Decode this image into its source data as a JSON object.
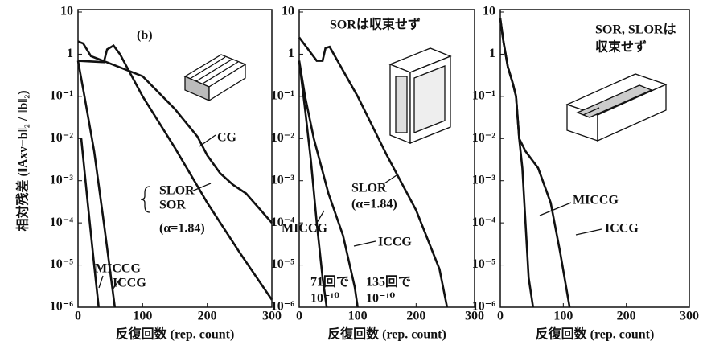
{
  "chart_data": [
    {
      "type": "line",
      "yscale": "log",
      "color": "#111111",
      "ylabel": "相対残差 (‖Axν−b‖₂ / ‖b‖₂)",
      "xlabel": "反復回数 (rep. count)",
      "xlim": [
        0,
        300
      ],
      "xticks": [
        0,
        100,
        200,
        300
      ],
      "ylim": [
        1e-06,
        10
      ],
      "yticks": [
        10,
        1,
        {
          "value": 0.1,
          "label": "10⁻¹"
        },
        {
          "value": 0.01,
          "label": "10⁻²"
        },
        {
          "value": 0.001,
          "label": "10⁻³"
        },
        {
          "value": 0.0001,
          "label": "10⁻⁴"
        },
        {
          "value": 1e-05,
          "label": "10⁻⁵"
        },
        {
          "value": 1e-06,
          "label": "10⁻⁶"
        }
      ],
      "annotations": [
        "(b)",
        "SOR",
        "(α=1.84)"
      ],
      "series": [
        {
          "name": "CG",
          "x": [
            0,
            8,
            20,
            50,
            100,
            150,
            185,
            200,
            220,
            240,
            260,
            300
          ],
          "values": [
            2,
            1.8,
            0.9,
            0.6,
            0.3,
            0.05,
            0.011,
            0.004,
            0.0015,
            0.0008,
            0.0005,
            0.0001
          ]
        },
        {
          "name": "SLOR",
          "x": [
            0,
            40,
            45,
            55,
            65,
            100,
            150,
            200,
            250,
            300
          ],
          "values": [
            0.7,
            0.65,
            1.3,
            1.6,
            1.0,
            0.1,
            0.006,
            0.0003,
            2e-05,
            1.5e-06
          ]
        },
        {
          "name": "MICCG",
          "x": [
            5,
            15,
            25,
            32
          ],
          "values": [
            0.01,
            0.0003,
            1e-05,
            1e-06
          ]
        },
        {
          "name": "ICCG",
          "x": [
            0,
            10,
            25,
            40,
            57
          ],
          "values": [
            0.7,
            0.1,
            0.005,
            0.0001,
            1e-06
          ]
        }
      ]
    },
    {
      "type": "line",
      "yscale": "log",
      "color": "#111111",
      "xlabel": "反復回数 (rep. count)",
      "xlim": [
        0,
        300
      ],
      "xticks": [
        0,
        100,
        200,
        300
      ],
      "ylim": [
        1e-06,
        10
      ],
      "yticks": [
        10,
        1,
        {
          "value": 0.1,
          "label": "10⁻¹"
        },
        {
          "value": 0.01,
          "label": "10⁻²"
        },
        {
          "value": 0.001,
          "label": "10⁻³"
        },
        {
          "value": 0.0001,
          "label": "10⁻⁴"
        },
        {
          "value": 1e-05,
          "label": "10⁻⁵"
        },
        {
          "value": 1e-06,
          "label": "10⁻⁶"
        }
      ],
      "annotations": [
        "SORは収束せず",
        "(α=1.84)",
        "71回で",
        "10⁻¹⁰",
        "135回で",
        "10⁻¹⁰"
      ],
      "series": [
        {
          "name": "SLOR",
          "x": [
            0,
            30,
            40,
            45,
            52,
            100,
            150,
            200,
            240,
            253
          ],
          "values": [
            2.5,
            0.7,
            0.7,
            1.4,
            1.5,
            0.1,
            0.004,
            0.0002,
            8e-06,
            1e-06
          ]
        },
        {
          "name": "MICCG",
          "x": [
            0,
            10,
            20,
            30,
            40,
            47
          ],
          "values": [
            0.7,
            0.05,
            0.003,
            0.0001,
            5e-06,
            1e-06
          ]
        },
        {
          "name": "ICCG",
          "x": [
            0,
            10,
            25,
            50,
            75,
            95,
            100
          ],
          "values": [
            0.7,
            0.1,
            0.01,
            0.0005,
            5e-05,
            3e-06,
            1e-06
          ]
        }
      ]
    },
    {
      "type": "line",
      "yscale": "log",
      "color": "#111111",
      "xlabel": "反復回数 (rep. count)",
      "xlim": [
        0,
        300
      ],
      "xticks": [
        0,
        100,
        200,
        300
      ],
      "ylim": [
        1e-06,
        10
      ],
      "yticks": [
        10,
        1,
        {
          "value": 0.1,
          "label": "10⁻¹"
        },
        {
          "value": 0.01,
          "label": "10⁻²"
        },
        {
          "value": 0.001,
          "label": "10⁻³"
        },
        {
          "value": 0.0001,
          "label": "10⁻⁴"
        },
        {
          "value": 1e-05,
          "label": "10⁻⁵"
        },
        {
          "value": 1e-06,
          "label": "10⁻⁶"
        }
      ],
      "annotations": [
        "SOR, SLORは",
        "収束せず"
      ],
      "series": [
        {
          "name": "MICCG",
          "x": [
            0,
            5,
            12,
            20,
            25,
            30,
            35,
            40,
            45,
            52
          ],
          "values": [
            7,
            2,
            0.5,
            0.2,
            0.1,
            0.01,
            0.002,
            0.0001,
            5e-06,
            1e-06
          ]
        },
        {
          "name": "ICCG",
          "x": [
            0,
            5,
            12,
            20,
            25,
            30,
            40,
            60,
            80,
            95,
            110
          ],
          "values": [
            7,
            2,
            0.5,
            0.2,
            0.1,
            0.01,
            0.005,
            0.002,
            0.0003,
            2e-05,
            1e-06
          ]
        }
      ]
    }
  ]
}
